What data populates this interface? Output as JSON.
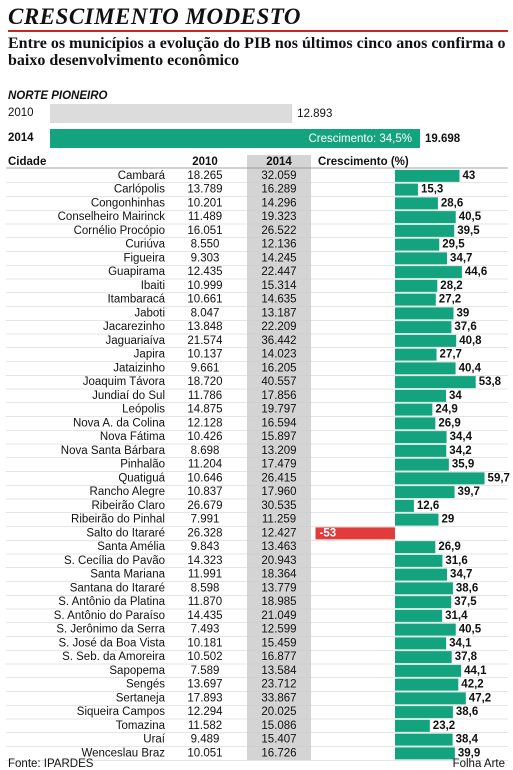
{
  "chart_data": {
    "type": "bar",
    "title": "CRESCIMENTO MODESTO",
    "subtitle": "Entre os municípios a evolução do PIB nos últimos cinco anos confirma o baixo desenvolvimento econômico",
    "summary": {
      "region": "NORTE PIONEIRO",
      "bars": [
        {
          "name": "2010",
          "value": 12893,
          "value_label": "12.893",
          "color": "#dcdcdc"
        },
        {
          "name": "2014",
          "value": 19698,
          "value_label": "19.698",
          "color": "#14a37f"
        }
      ],
      "growth_text": "Crescimento: 34,5%"
    },
    "city_header": "Cidade",
    "categories": [
      "Cambará",
      "Carlópolis",
      "Congonhinhas",
      "Conselheiro Mairinck",
      "Cornélio Procópio",
      "Curiúva",
      "Figueira",
      "Guapirama",
      "Ibaiti",
      "Itambaracá",
      "Jaboti",
      "Jacarezinho",
      "Jaguariaíva",
      "Japira",
      "Jataizinho",
      "Joaquim Távora",
      "Jundiaí do Sul",
      "Leópolis",
      "Nova A. da Colina",
      "Nova Fátima",
      "Nova Santa Bárbara",
      "Pinhalão",
      "Quatiguá",
      "Rancho Alegre",
      "Ribeirão Claro",
      "Ribeirão do Pinhal",
      "Salto do Itararé",
      "Santa Amélia",
      "S. Cecília do Pavão",
      "Santa Mariana",
      "Santana do Itararé",
      "S. Antônio da Platina",
      "S. Antônio do Paraíso",
      "S. Jerônimo da Serra",
      "S. José da Boa Vista",
      "S. Seb. da Amoreira",
      "Sapopema",
      "Sengés",
      "Sertaneja",
      "Siqueira Campos",
      "Tomazina",
      "Uraí",
      "Wenceslau Braz"
    ],
    "series": [
      {
        "name": "2010",
        "values": [
          "18.265",
          "13.789",
          "10.201",
          "11.489",
          "16.051",
          "8.550",
          "9.303",
          "12.435",
          "10.999",
          "10.661",
          "8.047",
          "13.848",
          "21.574",
          "10.137",
          "9.661",
          "18.720",
          "11.786",
          "14.875",
          "12.128",
          "10.426",
          "8.698",
          "11.204",
          "10.646",
          "10.837",
          "26.679",
          "7.991",
          "26.328",
          "9.843",
          "14.323",
          "11.991",
          "8.598",
          "11.870",
          "14.435",
          "7.493",
          "10.181",
          "10.502",
          "7.589",
          "13.697",
          "17.893",
          "12.294",
          "11.582",
          "9.489",
          "10.051"
        ]
      },
      {
        "name": "2014",
        "color": "#d4d4d4",
        "values": [
          "32.059",
          "16.289",
          "14.296",
          "19.323",
          "26.522",
          "12.136",
          "14.245",
          "22.447",
          "15.314",
          "14.635",
          "13.187",
          "22.209",
          "36.442",
          "14.023",
          "16.205",
          "40.557",
          "17.856",
          "19.797",
          "16.594",
          "15.897",
          "13.209",
          "17.479",
          "26.415",
          "17.960",
          "30.535",
          "11.259",
          "12.427",
          "13.463",
          "20.943",
          "18.364",
          "13.779",
          "18.985",
          "21.049",
          "12.599",
          "15.459",
          "16.877",
          "13.584",
          "23.712",
          "33.867",
          "20.025",
          "15.086",
          "15.407",
          "16.726"
        ]
      }
    ],
    "growth": {
      "name": "Crescimento (%)",
      "color": "#14a37f",
      "negative_color": "#e23b3b",
      "values": [
        43,
        15.3,
        28.6,
        40.5,
        39.5,
        29.5,
        34.7,
        44.6,
        28.2,
        27.2,
        39,
        37.6,
        40.8,
        27.7,
        40.4,
        53.8,
        34,
        24.9,
        26.9,
        34.4,
        34.2,
        35.9,
        59.7,
        39.7,
        12.6,
        29,
        -53,
        26.9,
        31.6,
        34.7,
        38.6,
        37.5,
        31.4,
        40.5,
        34.1,
        37.8,
        44.1,
        42.2,
        47.2,
        38.6,
        23.2,
        38.4,
        39.9
      ],
      "value_labels": [
        "43",
        "15,3",
        "28,6",
        "40,5",
        "39,5",
        "29,5",
        "34,7",
        "44,6",
        "28,2",
        "27,2",
        "39",
        "37,6",
        "40,8",
        "27,7",
        "40,4",
        "53,8",
        "34",
        "24,9",
        "26,9",
        "34,4",
        "34,2",
        "35,9",
        "59,7",
        "39,7",
        "12,6",
        "29",
        "-53",
        "26,9",
        "31,6",
        "34,7",
        "38,6",
        "37,5",
        "31,4",
        "40,5",
        "34,1",
        "37,8",
        "44,1",
        "42,2",
        "47,2",
        "38,6",
        "23,2",
        "38,4",
        "39,9"
      ]
    },
    "source": "Fonte: IPARDES",
    "credit": "Folha Arte"
  }
}
